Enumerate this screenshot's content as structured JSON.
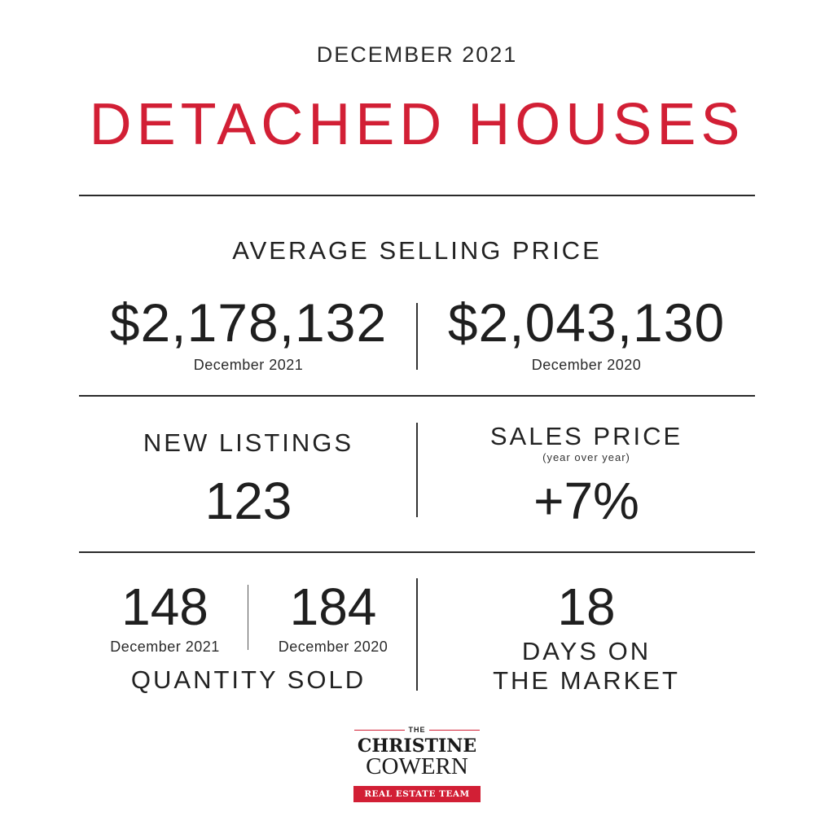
{
  "header": {
    "period": "DECEMBER 2021",
    "title": "DETACHED HOUSES"
  },
  "average_selling_price": {
    "heading": "AVERAGE SELLING PRICE",
    "current_value": "$2,178,132",
    "current_label": "December 2021",
    "previous_value": "$2,043,130",
    "previous_label": "December 2020"
  },
  "new_listings": {
    "heading": "NEW LISTINGS",
    "value": "123"
  },
  "sales_price": {
    "heading": "SALES PRICE",
    "subheading": "(year over year)",
    "value": "+7%"
  },
  "quantity_sold": {
    "current_value": "148",
    "current_label": "December 2021",
    "previous_value": "184",
    "previous_label": "December 2020",
    "heading": "QUANTITY SOLD"
  },
  "days_on_market": {
    "value": "18",
    "line1": "DAYS ON",
    "line2": "THE MARKET"
  },
  "logo": {
    "the": "THE",
    "name1": "CHRISTINE",
    "name2": "COWERN",
    "tagline": "REAL ESTATE TEAM"
  },
  "colors": {
    "accent": "#d21f35",
    "text": "#222222",
    "background": "#ffffff"
  }
}
